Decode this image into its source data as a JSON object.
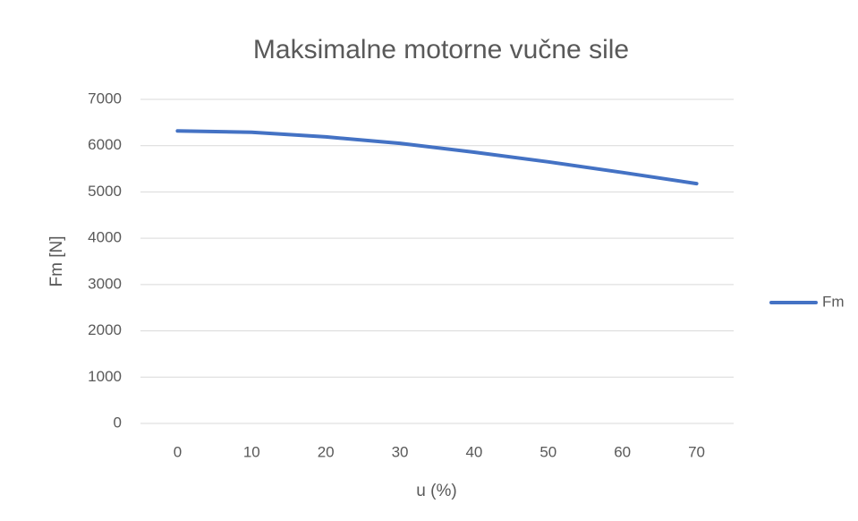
{
  "chart_data": {
    "type": "line",
    "title": "Maksimalne motorne vučne sile",
    "x_label": "u (%)",
    "y_label": "Fm [N]",
    "categories": [
      "0",
      "10",
      "20",
      "30",
      "40",
      "50",
      "60",
      "70"
    ],
    "series": [
      {
        "name": "Fm",
        "color": "#4472c4",
        "values": [
          6320,
          6290,
          6190,
          6050,
          5860,
          5650,
          5420,
          5180
        ]
      }
    ],
    "ylim": [
      0,
      7000
    ],
    "yticks": [
      0,
      1000,
      2000,
      3000,
      4000,
      5000,
      6000,
      7000
    ],
    "grid": true,
    "legend": "right"
  }
}
